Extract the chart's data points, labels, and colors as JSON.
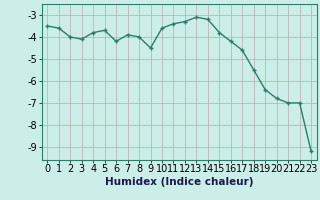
{
  "x": [
    0,
    1,
    2,
    3,
    4,
    5,
    6,
    7,
    8,
    9,
    10,
    11,
    12,
    13,
    14,
    15,
    16,
    17,
    18,
    19,
    20,
    21,
    22,
    23
  ],
  "y": [
    -3.5,
    -3.6,
    -4.0,
    -4.1,
    -3.8,
    -3.7,
    -4.2,
    -3.9,
    -4.0,
    -4.5,
    -3.6,
    -3.4,
    -3.3,
    -3.1,
    -3.2,
    -3.8,
    -4.2,
    -4.6,
    -5.5,
    -6.4,
    -6.8,
    -7.0,
    -7.0,
    -9.2
  ],
  "line_color": "#2d7d6d",
  "marker": "+",
  "marker_color": "#2d7d6d",
  "bg_color": "#cceee8",
  "grid_color": "#c0a8a8",
  "xlabel": "Humidex (Indice chaleur)",
  "xlim": [
    -0.5,
    23.5
  ],
  "ylim": [
    -9.6,
    -2.5
  ],
  "yticks": [
    -3,
    -4,
    -5,
    -6,
    -7,
    -8,
    -9
  ],
  "xticks": [
    0,
    1,
    2,
    3,
    4,
    5,
    6,
    7,
    8,
    9,
    10,
    11,
    12,
    13,
    14,
    15,
    16,
    17,
    18,
    19,
    20,
    21,
    22,
    23
  ],
  "xlabel_fontsize": 7.5,
  "tick_fontsize": 7,
  "line_width": 1.0,
  "marker_size": 3.5
}
